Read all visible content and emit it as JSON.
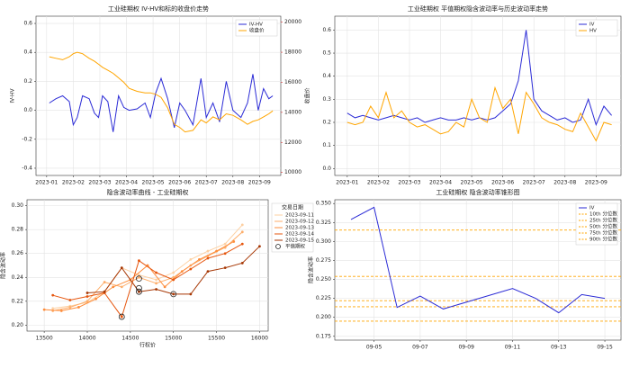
{
  "chart_data": [
    {
      "type": "line",
      "title": "工业硅期权 IV-HV和标的收盘价走势",
      "ylabel": "IV-HV",
      "y2label": "收盘价",
      "legend": "upper right",
      "grid": true,
      "x": [
        1.1,
        1.35,
        1.6,
        1.85,
        2.0,
        2.15,
        2.35,
        2.6,
        2.8,
        2.95,
        3.1,
        3.3,
        3.5,
        3.7,
        3.9,
        4.1,
        4.4,
        4.7,
        4.9,
        5.1,
        5.3,
        5.55,
        5.8,
        6.0,
        6.2,
        6.5,
        6.8,
        7.0,
        7.25,
        7.5,
        7.75,
        8.0,
        8.3,
        8.55,
        8.75,
        8.95,
        9.15,
        9.35,
        9.5
      ],
      "xlim": [
        0.6,
        9.8
      ],
      "xticks": [
        {
          "value": 1,
          "label": "2023-01"
        },
        {
          "value": 2,
          "label": "2023-02"
        },
        {
          "value": 3,
          "label": "2023-03"
        },
        {
          "value": 4,
          "label": "2023-04"
        },
        {
          "value": 5,
          "label": "2023-05"
        },
        {
          "value": 6,
          "label": "2023-06"
        },
        {
          "value": 7,
          "label": "2023-07"
        },
        {
          "value": 8,
          "label": "2023-08"
        },
        {
          "value": 9,
          "label": "2023-09"
        }
      ],
      "ylim": [
        -0.45,
        0.65
      ],
      "yticks": [
        -0.4,
        -0.2,
        {
          "value": 0,
          "label": "0.0"
        },
        0.2,
        0.4,
        0.6
      ],
      "y2lim": [
        9800,
        20400
      ],
      "y2ticks": [
        10000,
        12000,
        14000,
        16000,
        18000,
        20000
      ],
      "series": [
        {
          "name": "IV-HV",
          "color": "#2b2bd6",
          "values": [
            0.05,
            0.08,
            0.1,
            0.06,
            -0.1,
            -0.05,
            0.1,
            0.08,
            -0.02,
            -0.05,
            0.1,
            0.06,
            -0.15,
            0.1,
            0.02,
            0.0,
            0.01,
            0.05,
            -0.05,
            0.12,
            0.22,
            0.08,
            -0.12,
            0.05,
            0.0,
            -0.1,
            0.22,
            -0.05,
            0.05,
            -0.08,
            0.2,
            0.0,
            -0.05,
            0.05,
            0.25,
            0.0,
            0.15,
            0.08,
            0.1
          ]
        },
        {
          "name": "收盘价",
          "color": "#ffa500",
          "axis": "y2",
          "values": [
            17700,
            17600,
            17500,
            17700,
            17900,
            18000,
            17900,
            17600,
            17400,
            17200,
            17000,
            16800,
            16600,
            16300,
            16000,
            15600,
            15400,
            15300,
            15300,
            15200,
            15000,
            14300,
            13200,
            13000,
            12700,
            12800,
            13500,
            13300,
            13700,
            13500,
            13900,
            13800,
            13500,
            13200,
            13400,
            13500,
            13700,
            13900,
            14100
          ]
        }
      ]
    },
    {
      "type": "line",
      "title": "工业硅期权 平值期权隐含波动率与历史波动率走势",
      "legend": "upper right",
      "grid": true,
      "x": [
        1.0,
        1.25,
        1.5,
        1.75,
        2.0,
        2.25,
        2.5,
        2.75,
        3.0,
        3.25,
        3.5,
        3.75,
        4.0,
        4.25,
        4.5,
        4.75,
        5.0,
        5.25,
        5.5,
        5.75,
        6.0,
        6.25,
        6.5,
        6.75,
        7.0,
        7.25,
        7.5,
        7.75,
        8.0,
        8.25,
        8.5,
        8.75,
        9.0,
        9.25,
        9.5
      ],
      "xlim": [
        0.6,
        9.8
      ],
      "xticks": [
        {
          "value": 1,
          "label": "2023-01"
        },
        {
          "value": 2,
          "label": "2023-02"
        },
        {
          "value": 3,
          "label": "2023-03"
        },
        {
          "value": 4,
          "label": "2023-04"
        },
        {
          "value": 5,
          "label": "2023-05"
        },
        {
          "value": 6,
          "label": "2023-06"
        },
        {
          "value": 7,
          "label": "2023-07"
        },
        {
          "value": 8,
          "label": "2023-08"
        },
        {
          "value": 9,
          "label": "2023-09"
        }
      ],
      "ylim": [
        -0.03,
        0.66
      ],
      "yticks": [
        {
          "value": 0,
          "label": "0.0"
        },
        0.1,
        0.2,
        0.3,
        0.4,
        0.5,
        0.6
      ],
      "series": [
        {
          "name": "IV",
          "color": "#2b2bd6",
          "values": [
            0.24,
            0.22,
            0.23,
            0.22,
            0.21,
            0.22,
            0.23,
            0.22,
            0.21,
            0.22,
            0.2,
            0.21,
            0.22,
            0.21,
            0.21,
            0.22,
            0.21,
            0.22,
            0.21,
            0.22,
            0.25,
            0.28,
            0.38,
            0.6,
            0.3,
            0.25,
            0.23,
            0.21,
            0.22,
            0.2,
            0.21,
            0.3,
            0.19,
            0.27,
            0.23
          ]
        },
        {
          "name": "HV",
          "color": "#ffa500",
          "values": [
            0.2,
            0.19,
            0.2,
            0.27,
            0.22,
            0.33,
            0.22,
            0.25,
            0.2,
            0.18,
            0.19,
            0.17,
            0.15,
            0.16,
            0.2,
            0.18,
            0.3,
            0.22,
            0.2,
            0.35,
            0.26,
            0.3,
            0.15,
            0.33,
            0.28,
            0.22,
            0.2,
            0.19,
            0.17,
            0.16,
            0.24,
            0.18,
            0.12,
            0.2,
            0.19
          ]
        }
      ]
    },
    {
      "type": "line",
      "markers": true,
      "title": "隐含波动率曲线 - 工业硅期权",
      "xlabel": "行权价",
      "ylabel": "隐含波动率",
      "legend": "outside right",
      "legend_title": "交易日期",
      "grid": true,
      "xlim": [
        13300,
        16100
      ],
      "xticks": [
        13500,
        14000,
        14500,
        15000,
        15500,
        16000
      ],
      "ylim": [
        0.195,
        0.305
      ],
      "yticks": [
        {
          "value": 0.2,
          "label": "0.20"
        },
        0.22,
        0.24,
        0.26,
        0.28,
        {
          "value": 0.3,
          "label": "0.30"
        }
      ],
      "series": [
        {
          "name": "2023-09-11",
          "color": "#fdd0a2",
          "x": [
            13600,
            13800,
            14000,
            14200,
            14400,
            14600,
            14800,
            15000,
            15200,
            15400,
            15600,
            15800
          ],
          "values": [
            0.214,
            0.216,
            0.219,
            0.228,
            0.248,
            0.242,
            0.238,
            0.244,
            0.255,
            0.262,
            0.268,
            0.284
          ]
        },
        {
          "name": "2023-09-12",
          "color": "#fdae6b",
          "x": [
            13600,
            13800,
            14000,
            14200,
            14400,
            14600,
            14800,
            15000,
            15200,
            15400,
            15600,
            15800
          ],
          "values": [
            0.212,
            0.215,
            0.22,
            0.236,
            0.232,
            0.24,
            0.235,
            0.24,
            0.25,
            0.258,
            0.265,
            0.278
          ]
        },
        {
          "name": "2023-09-13",
          "color": "#fd8d3c",
          "x": [
            13500,
            13700,
            13900,
            14100,
            14300,
            14500,
            14700,
            14900,
            15100,
            15300,
            15500,
            15700
          ],
          "values": [
            0.213,
            0.212,
            0.215,
            0.222,
            0.232,
            0.238,
            0.25,
            0.232,
            0.245,
            0.255,
            0.262,
            0.27
          ]
        },
        {
          "name": "2023-09-14",
          "color": "#e6550d",
          "x": [
            13600,
            13800,
            14000,
            14200,
            14400,
            14600,
            14800,
            15000,
            15200,
            15400,
            15600,
            15800
          ],
          "values": [
            0.225,
            0.221,
            0.224,
            0.227,
            0.207,
            0.254,
            0.244,
            0.238,
            0.247,
            0.256,
            0.26,
            0.268
          ]
        },
        {
          "name": "2023-09-15",
          "color": "#a63603",
          "x": [
            14000,
            14200,
            14400,
            14600,
            14800,
            15000,
            15200,
            15400,
            15600,
            15800,
            16000
          ],
          "values": [
            0.227,
            0.228,
            0.248,
            0.228,
            0.23,
            0.226,
            0.226,
            0.245,
            0.248,
            0.252,
            0.266
          ]
        }
      ],
      "atm": {
        "name": "平值期权",
        "x": [
          14400,
          14600,
          14600,
          14600,
          15000
        ],
        "values": [
          0.207,
          0.239,
          0.231,
          0.228,
          0.226
        ]
      }
    },
    {
      "type": "line",
      "title": "工业硅期权 隐含波动率锥形图",
      "ylabel": "隐含波动率",
      "legend": "upper right",
      "grid": true,
      "x": [
        4,
        5,
        6,
        7,
        8,
        11,
        12,
        13,
        14,
        15
      ],
      "xlim": [
        3.3,
        15.7
      ],
      "xticks": [
        {
          "value": 5,
          "label": "09-05"
        },
        {
          "value": 7,
          "label": "09-07"
        },
        {
          "value": 9,
          "label": "09-09"
        },
        {
          "value": 11,
          "label": "09-11"
        },
        {
          "value": 13,
          "label": "09-13"
        },
        {
          "value": 15,
          "label": "09-15"
        }
      ],
      "ylim": [
        0.17,
        0.355
      ],
      "yticks": [
        0.175,
        {
          "value": 0.2,
          "label": "0.200"
        },
        0.225,
        {
          "value": 0.25,
          "label": "0.250"
        },
        0.275,
        {
          "value": 0.3,
          "label": "0.300"
        },
        0.325,
        {
          "value": 0.35,
          "label": "0.350"
        }
      ],
      "series": [
        {
          "name": "IV",
          "color": "#2b2bd6",
          "values": [
            0.329,
            0.345,
            0.213,
            0.228,
            0.211,
            0.238,
            0.225,
            0.206,
            0.23,
            0.225
          ]
        }
      ],
      "percentiles": {
        "color": "#ffa500",
        "names": [
          "10th 分位数",
          "25th 分位数",
          "50th 分位数",
          "75th 分位数",
          "90th 分位数"
        ],
        "values": [
          0.195,
          0.214,
          0.222,
          0.254,
          0.315
        ]
      }
    }
  ]
}
